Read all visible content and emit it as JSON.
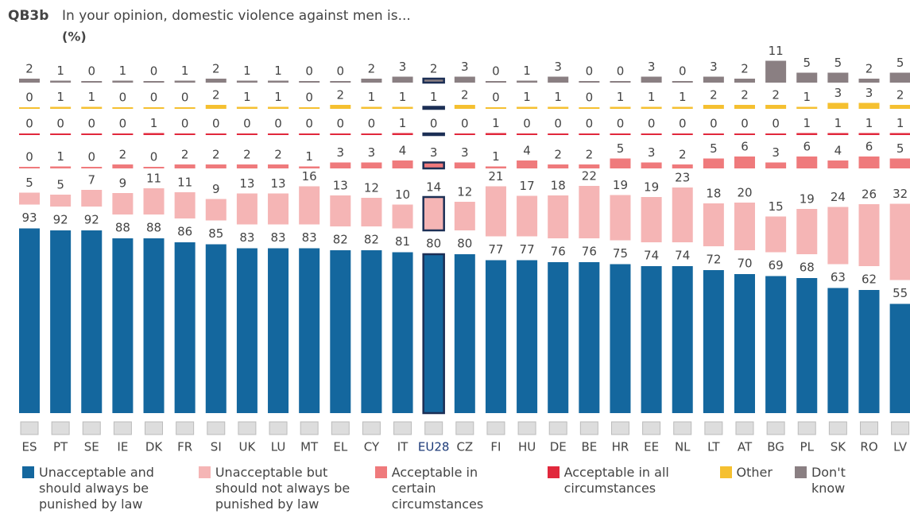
{
  "chart_data": {
    "type": "bar",
    "code": "QB3b",
    "title": "In your opinion, domestic violence against men is...",
    "unit": "(%)",
    "categories": [
      "ES",
      "PT",
      "SE",
      "IE",
      "DK",
      "FR",
      "SI",
      "UK",
      "LU",
      "MT",
      "EL",
      "CY",
      "IT",
      "EU28",
      "CZ",
      "FI",
      "HU",
      "DE",
      "BE",
      "HR",
      "EE",
      "NL",
      "LT",
      "AT",
      "BG",
      "PL",
      "SK",
      "RO",
      "LV"
    ],
    "highlight": "EU28",
    "series": [
      {
        "name": "Unacceptable and should always be punished by law",
        "color": "#14679e",
        "values": [
          93,
          92,
          92,
          88,
          88,
          86,
          85,
          83,
          83,
          83,
          82,
          82,
          81,
          80,
          80,
          77,
          77,
          76,
          76,
          75,
          74,
          74,
          72,
          70,
          69,
          68,
          63,
          62,
          55
        ]
      },
      {
        "name": "Unacceptable but should not always be punished by law",
        "color": "#f5b5b5",
        "values": [
          5,
          5,
          7,
          9,
          11,
          11,
          9,
          13,
          13,
          16,
          13,
          12,
          10,
          14,
          12,
          21,
          17,
          18,
          22,
          19,
          19,
          23,
          18,
          20,
          15,
          19,
          24,
          26,
          32
        ]
      },
      {
        "name": "Acceptable in certain circumstances",
        "color": "#ef7a7c",
        "values": [
          0,
          1,
          0,
          2,
          0,
          2,
          2,
          2,
          2,
          1,
          3,
          3,
          4,
          3,
          3,
          1,
          4,
          2,
          2,
          5,
          3,
          2,
          5,
          6,
          3,
          6,
          4,
          6,
          5
        ]
      },
      {
        "name": "Acceptable in all circumstances",
        "color": "#e1283c",
        "values": [
          0,
          0,
          0,
          0,
          1,
          0,
          0,
          0,
          0,
          0,
          0,
          0,
          1,
          0,
          0,
          1,
          0,
          0,
          0,
          0,
          0,
          0,
          0,
          0,
          0,
          1,
          1,
          1,
          1
        ]
      },
      {
        "name": "Other",
        "color": "#f5c030",
        "values": [
          0,
          1,
          1,
          0,
          0,
          0,
          2,
          1,
          1,
          0,
          2,
          1,
          1,
          1,
          2,
          0,
          1,
          1,
          0,
          1,
          1,
          1,
          2,
          2,
          2,
          1,
          3,
          3,
          2
        ]
      },
      {
        "name": "Don't know",
        "color": "#8a7f82",
        "values": [
          2,
          1,
          0,
          1,
          0,
          1,
          2,
          1,
          1,
          0,
          0,
          2,
          3,
          2,
          3,
          0,
          1,
          3,
          0,
          0,
          3,
          0,
          3,
          2,
          11,
          5,
          5,
          2,
          5
        ]
      }
    ]
  }
}
